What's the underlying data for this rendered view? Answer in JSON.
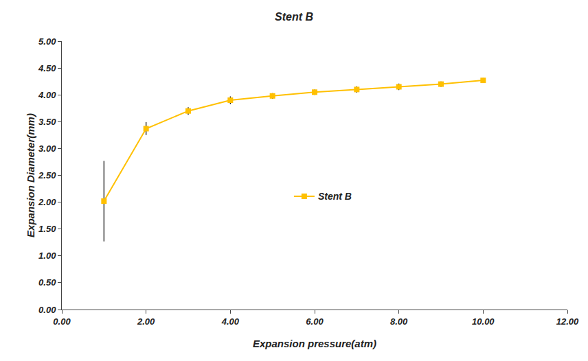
{
  "chart_data": {
    "type": "line",
    "title": "Stent B",
    "xlabel": "Expansion pressure(atm)",
    "ylabel": "Expansion Diameter(mm)",
    "x": [
      1,
      2,
      3,
      4,
      5,
      6,
      7,
      8,
      9,
      10
    ],
    "series": [
      {
        "name": "Stent B",
        "color": "#FFC000",
        "marker": "square",
        "line_style": "solid",
        "values": [
          2.02,
          3.37,
          3.7,
          3.9,
          3.98,
          4.05,
          4.1,
          4.15,
          4.2,
          4.27
        ],
        "yerr": [
          0.75,
          0.12,
          0.07,
          0.07,
          0.05,
          0.05,
          0.06,
          0.06,
          0.05,
          0.05
        ]
      }
    ],
    "xlim": [
      0,
      12
    ],
    "ylim": [
      0,
      5.0
    ],
    "xticks": [
      {
        "value": 0,
        "label": "0.00"
      },
      {
        "value": 2,
        "label": "2.00"
      },
      {
        "value": 4,
        "label": "4.00"
      },
      {
        "value": 6,
        "label": "6.00"
      },
      {
        "value": 8,
        "label": "8.00"
      },
      {
        "value": 10,
        "label": "10.00"
      },
      {
        "value": 12,
        "label": "12.00"
      }
    ],
    "yticks": [
      {
        "value": 0,
        "label": "0.00"
      },
      {
        "value": 0.5,
        "label": "0.50"
      },
      {
        "value": 1,
        "label": "1.00"
      },
      {
        "value": 1.5,
        "label": "1.50"
      },
      {
        "value": 2,
        "label": "2.00"
      },
      {
        "value": 2.5,
        "label": "2.50"
      },
      {
        "value": 3,
        "label": "3.00"
      },
      {
        "value": 3.5,
        "label": "3.50"
      },
      {
        "value": 4,
        "label": "4.00"
      },
      {
        "value": 4.5,
        "label": "4.50"
      },
      {
        "value": 5,
        "label": "5.00"
      }
    ],
    "grid": false,
    "legend": "lower right"
  }
}
